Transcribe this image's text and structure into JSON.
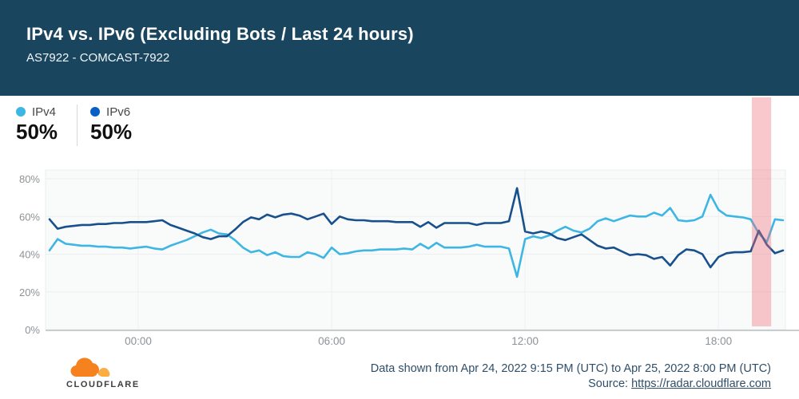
{
  "header": {
    "title": "IPv4 vs. IPv6 (Excluding Bots / Last 24 hours)",
    "subtitle": "AS7922 - COMCAST-7922"
  },
  "legend": {
    "items": [
      {
        "label": "IPv4",
        "value": "50%",
        "color": "#3db6e4"
      },
      {
        "label": "IPv6",
        "value": "50%",
        "color": "#0a5fc4"
      }
    ]
  },
  "chart_data": {
    "type": "line",
    "title": "IPv4 vs. IPv6 share over last 24 hours",
    "xlabel": "",
    "ylabel": "",
    "ylim": [
      0,
      85
    ],
    "grid": true,
    "y_ticks": [
      "0%",
      "20%",
      "40%",
      "60%",
      "80%"
    ],
    "y_tick_values": [
      0,
      20,
      40,
      60,
      80
    ],
    "x_ticks": [
      "00:00",
      "06:00",
      "12:00",
      "18:00"
    ],
    "x": [
      "21:15",
      "21:30",
      "21:45",
      "22:00",
      "22:15",
      "22:30",
      "22:45",
      "23:00",
      "23:15",
      "23:30",
      "23:45",
      "00:00",
      "00:15",
      "00:30",
      "00:45",
      "01:00",
      "01:15",
      "01:30",
      "01:45",
      "02:00",
      "02:15",
      "02:30",
      "02:45",
      "03:00",
      "03:15",
      "03:30",
      "03:45",
      "04:00",
      "04:15",
      "04:30",
      "04:45",
      "05:00",
      "05:15",
      "05:30",
      "05:45",
      "06:00",
      "06:15",
      "06:30",
      "06:45",
      "07:00",
      "07:15",
      "07:30",
      "07:45",
      "08:00",
      "08:15",
      "08:30",
      "08:45",
      "09:00",
      "09:15",
      "09:30",
      "09:45",
      "10:00",
      "10:15",
      "10:30",
      "10:45",
      "11:00",
      "11:15",
      "11:30",
      "11:45",
      "12:00",
      "12:15",
      "12:30",
      "12:45",
      "13:00",
      "13:15",
      "13:30",
      "13:45",
      "14:00",
      "14:15",
      "14:30",
      "14:45",
      "15:00",
      "15:15",
      "15:30",
      "15:45",
      "16:00",
      "16:15",
      "16:30",
      "16:45",
      "17:00",
      "17:15",
      "17:30",
      "17:45",
      "18:00",
      "18:15",
      "18:30",
      "18:45",
      "19:00",
      "19:15",
      "19:30",
      "19:45",
      "20:00"
    ],
    "series": [
      {
        "name": "IPv4",
        "color": "#3db6e4",
        "values": [
          42,
          48,
          45.5,
          45,
          44.5,
          44.5,
          44,
          44,
          43.5,
          43.5,
          43,
          43.5,
          44,
          43,
          42.5,
          44.5,
          46,
          47.5,
          49.5,
          51.5,
          53,
          51,
          50.5,
          47.5,
          43.5,
          41,
          42,
          39.5,
          41,
          39,
          38.5,
          38.5,
          41,
          40,
          38,
          43.5,
          40,
          40.5,
          41.5,
          42,
          42,
          42.5,
          42.5,
          42.5,
          43,
          42.5,
          45.5,
          43,
          46,
          43.5,
          43.5,
          43.5,
          44,
          45,
          44,
          44,
          44,
          43,
          28,
          48,
          49.5,
          48.5,
          50,
          52.5,
          54.5,
          52.5,
          51.5,
          53.5,
          57.5,
          59,
          57.5,
          59,
          60.5,
          60,
          60,
          62,
          60.5,
          64.5,
          58,
          57.5,
          58,
          60,
          71.5,
          63.5,
          60.5,
          60,
          59.5,
          58.5,
          51,
          46.5,
          58.5,
          58
        ]
      },
      {
        "name": "IPv6",
        "color": "#17508c",
        "values": [
          58.5,
          53.5,
          54.5,
          55,
          55.5,
          55.5,
          56,
          56,
          56.5,
          56.5,
          57,
          57,
          57,
          57.5,
          58,
          55.5,
          54,
          52.5,
          51,
          49,
          48,
          49.5,
          49.5,
          53,
          57,
          59.5,
          58.5,
          61,
          59.5,
          61,
          61.5,
          60.5,
          58.5,
          60,
          61.5,
          56,
          60,
          58.5,
          58,
          58,
          57.5,
          57.5,
          57.5,
          57,
          57,
          57,
          54.5,
          57,
          54,
          56.5,
          56.5,
          56.5,
          56.5,
          55.5,
          56.5,
          56.5,
          56.5,
          57.5,
          75,
          52,
          51,
          52,
          51,
          48.5,
          47.5,
          49,
          50.5,
          47.5,
          44.5,
          43,
          43.5,
          41.5,
          39.5,
          40,
          39.5,
          37.5,
          38.5,
          34,
          39.5,
          42.5,
          42,
          40,
          33,
          38.5,
          40.5,
          41,
          41,
          41.5,
          52.5,
          45,
          40.5,
          42
        ]
      }
    ],
    "highlight_region": {
      "from": "19:02",
      "to": "19:38",
      "color": "rgba(239,111,120,0.38)"
    },
    "legend_position": "top-left"
  },
  "footer": {
    "data_range": "Data shown from Apr 24, 2022 9:15 PM (UTC) to Apr 25, 2022 8:00 PM (UTC)",
    "source_label": "Source: ",
    "source_link": "https://radar.cloudflare.com",
    "brand": "CLOUDFLARE",
    "brand_orange": "#f6821f",
    "brand_light_orange": "#fbad41"
  }
}
